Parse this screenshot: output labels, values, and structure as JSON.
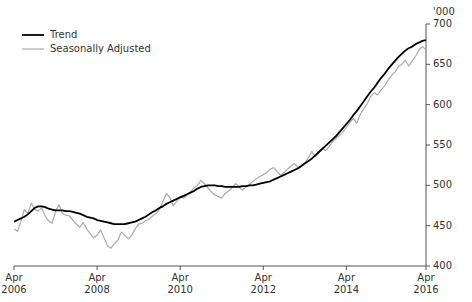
{
  "chart_data": {
    "type": "line",
    "ylabel": "'000",
    "categories": [
      "Apr\n2006",
      null,
      null,
      null,
      null,
      null,
      null,
      null,
      null,
      null,
      null,
      null,
      null,
      null,
      null,
      null,
      null,
      null,
      null,
      null,
      null,
      null,
      null,
      null,
      "Apr\n2008",
      null,
      null,
      null,
      null,
      null,
      null,
      null,
      null,
      null,
      null,
      null,
      null,
      null,
      null,
      null,
      null,
      null,
      null,
      null,
      null,
      null,
      null,
      null,
      "Apr\n2010",
      null,
      null,
      null,
      null,
      null,
      null,
      null,
      null,
      null,
      null,
      null,
      null,
      null,
      null,
      null,
      null,
      null,
      null,
      null,
      null,
      null,
      null,
      null,
      "Apr\n2012",
      null,
      null,
      null,
      null,
      null,
      null,
      null,
      null,
      null,
      null,
      null,
      null,
      null,
      null,
      null,
      null,
      null,
      null,
      null,
      null,
      null,
      null,
      null,
      "Apr\n2014",
      null,
      null,
      null,
      null,
      null,
      null,
      null,
      null,
      null,
      null,
      null,
      null,
      null,
      null,
      null,
      null,
      null,
      null,
      null,
      null,
      null,
      null,
      "Apr\n2016"
    ],
    "series": [
      {
        "name": "Trend",
        "color": "#000000",
        "values": [
          455,
          457,
          459,
          461,
          464,
          468,
          472,
          474,
          474,
          473,
          471,
          470,
          469,
          469,
          469,
          468,
          468,
          467,
          466,
          465,
          463,
          461,
          460,
          459,
          457,
          456,
          455,
          454,
          453,
          452,
          452,
          452,
          452,
          453,
          454,
          455,
          457,
          459,
          461,
          464,
          467,
          469,
          472,
          474,
          477,
          479,
          481,
          483,
          485,
          487,
          489,
          491,
          493,
          496,
          498,
          499,
          500,
          500,
          500,
          499,
          499,
          498,
          498,
          498,
          498,
          498,
          499,
          499,
          500,
          500,
          501,
          502,
          503,
          504,
          505,
          507,
          509,
          511,
          513,
          515,
          517,
          519,
          521,
          524,
          527,
          530,
          533,
          537,
          541,
          545,
          549,
          553,
          557,
          561,
          566,
          571,
          576,
          581,
          587,
          592,
          598,
          604,
          610,
          616,
          621,
          627,
          633,
          638,
          644,
          649,
          654,
          659,
          663,
          667,
          670,
          672,
          675,
          677,
          679,
          680
        ]
      },
      {
        "name": "Seasonally Adjusted",
        "color": "#aaaaaa",
        "values": [
          446,
          443,
          455,
          470,
          465,
          478,
          470,
          468,
          472,
          462,
          456,
          453,
          468,
          476,
          465,
          463,
          462,
          457,
          452,
          448,
          454,
          446,
          440,
          435,
          438,
          445,
          435,
          425,
          422,
          428,
          432,
          442,
          438,
          434,
          438,
          446,
          452,
          453,
          456,
          458,
          462,
          465,
          470,
          480,
          490,
          485,
          475,
          480,
          486,
          484,
          488,
          492,
          497,
          500,
          506,
          502,
          497,
          492,
          488,
          486,
          484,
          490,
          493,
          497,
          502,
          498,
          494,
          498,
          501,
          505,
          508,
          511,
          513,
          516,
          520,
          522,
          517,
          512,
          516,
          520,
          524,
          527,
          522,
          524,
          528,
          534,
          542,
          536,
          540,
          546,
          543,
          548,
          554,
          558,
          562,
          566,
          572,
          578,
          583,
          577,
          588,
          595,
          601,
          610,
          615,
          612,
          618,
          623,
          630,
          636,
          640,
          647,
          650,
          655,
          648,
          654,
          660,
          668,
          672,
          668
        ]
      }
    ],
    "ylim": [
      400,
      700
    ],
    "yticks": [
      400,
      450,
      500,
      550,
      600,
      650,
      700
    ],
    "grid": false,
    "legend": "upper left"
  }
}
